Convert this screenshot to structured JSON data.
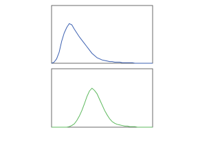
{
  "chart_data": [
    {
      "type": "line",
      "color": "#3a5fb0",
      "x": [
        0,
        1,
        2,
        3,
        4,
        5,
        6,
        7,
        8,
        9,
        10,
        11,
        12,
        13,
        14,
        15,
        16,
        17,
        18,
        19,
        20,
        21,
        22,
        23,
        24,
        25,
        26,
        27,
        28,
        29,
        30,
        31,
        32,
        33,
        34,
        35,
        36,
        37,
        38,
        39,
        40
      ],
      "series": [
        {
          "color": "#3a5fb0",
          "values": [
            0,
            2,
            8,
            20,
            40,
            55,
            65,
            72,
            70,
            62,
            55,
            48,
            42,
            36,
            30,
            24,
            18,
            14,
            10,
            8,
            6,
            5,
            4,
            3,
            3,
            2,
            2,
            2,
            1,
            1,
            1,
            1,
            1,
            0,
            0,
            0,
            0,
            0,
            0,
            0,
            0
          ]
        }
      ],
      "xlim": [
        0,
        40
      ],
      "ylim": [
        0,
        100
      ]
    },
    {
      "type": "line",
      "color": "#5cb85c",
      "x": [
        0,
        1,
        2,
        3,
        4,
        5,
        6,
        7,
        8,
        9,
        10,
        11,
        12,
        13,
        14,
        15,
        16,
        17,
        18,
        19,
        20,
        21,
        22,
        23,
        24,
        25,
        26,
        27,
        28,
        29,
        30,
        31,
        32,
        33,
        34,
        35,
        36,
        37,
        38,
        39,
        40
      ],
      "series": [
        {
          "color": "#5cb85c",
          "values": [
            0,
            0,
            0,
            0,
            0,
            0,
            0,
            1,
            3,
            6,
            12,
            20,
            30,
            42,
            55,
            65,
            70,
            66,
            60,
            50,
            40,
            30,
            22,
            15,
            10,
            7,
            5,
            4,
            3,
            2,
            2,
            1,
            1,
            1,
            0,
            0,
            0,
            0,
            0,
            0,
            0
          ]
        }
      ],
      "xlim": [
        0,
        40
      ],
      "ylim": [
        0,
        100
      ]
    }
  ]
}
